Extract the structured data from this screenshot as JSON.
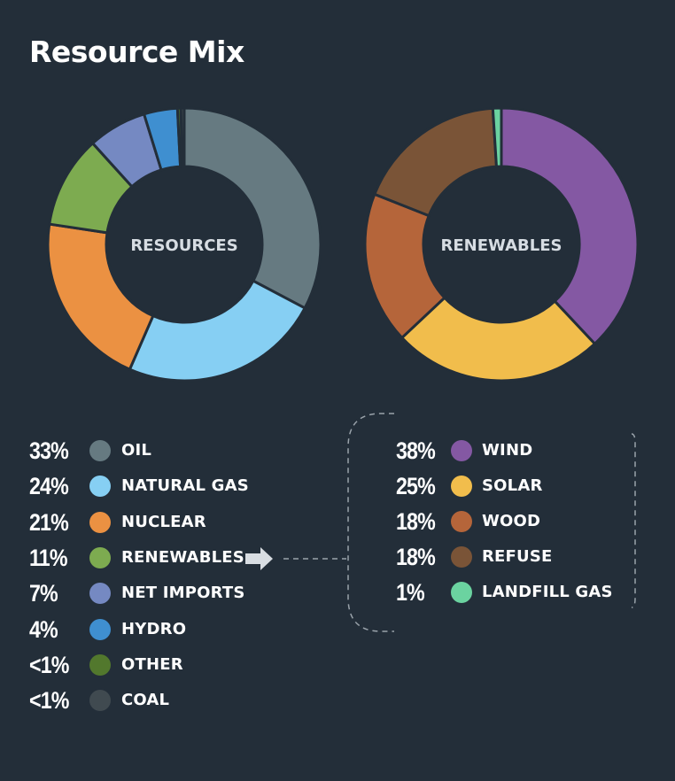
{
  "title": "Resource Mix",
  "chart_data": [
    {
      "type": "donut",
      "center_label": "RESOURCES",
      "categories": [
        "OIL",
        "NATURAL GAS",
        "NUCLEAR",
        "RENEWABLES",
        "NET IMPORTS",
        "HYDRO",
        "OTHER",
        "COAL"
      ],
      "values": [
        33,
        24,
        21,
        11,
        7,
        4,
        0.4,
        0.4
      ],
      "labels": [
        "33%",
        "24%",
        "21%",
        "11%",
        "7%",
        "4%",
        "<1%",
        "<1%"
      ],
      "colors": [
        "#667a81",
        "#86cff3",
        "#eb9142",
        "#7dab50",
        "#7589c2",
        "#3f8fd0",
        "#52782d",
        "#404a50"
      ]
    },
    {
      "type": "donut",
      "center_label": "RENEWABLES",
      "categories": [
        "WIND",
        "SOLAR",
        "WOOD",
        "REFUSE",
        "LANDFILL GAS"
      ],
      "values": [
        38,
        25,
        18,
        18,
        1
      ],
      "labels": [
        "38%",
        "25%",
        "18%",
        "18%",
        "1%"
      ],
      "colors": [
        "#8458a3",
        "#f1bd4c",
        "#b5653a",
        "#7a5437",
        "#6bd3a0"
      ]
    }
  ],
  "arrow_icon": "arrow-right-icon"
}
